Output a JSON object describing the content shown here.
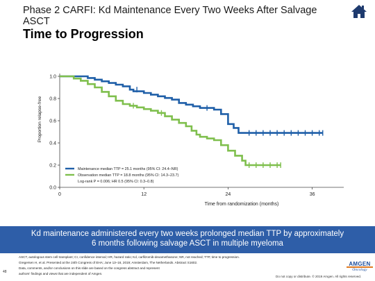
{
  "header": {
    "title_line1": "Phase 2 CARFI: Kd Maintenance Every Two Weeks After Salvage ASCT",
    "title_line2": "Time to Progression"
  },
  "icons": {
    "home": "home-icon"
  },
  "chart_data": {
    "type": "line",
    "subtype": "kaplan-meier",
    "xlabel": "Time from randomization (months)",
    "ylabel": "Proportion relapse-free",
    "xlim": [
      0,
      40
    ],
    "ylim": [
      0,
      1
    ],
    "x_ticks": [
      "0",
      "12",
      "24",
      "36"
    ],
    "y_ticks": [
      "0.0",
      "0.2",
      "0.4",
      "0.6",
      "0.8",
      "1.0"
    ],
    "legend_position": "bottom-center",
    "series": [
      {
        "name": "Maintenance median TTP = 25.1 months (95% CI: 24.4–NR)",
        "color": "#1f5fa8",
        "points": [
          [
            0,
            1.0
          ],
          [
            4,
            1.0
          ],
          [
            4,
            0.985
          ],
          [
            5,
            0.985
          ],
          [
            5,
            0.97
          ],
          [
            6,
            0.97
          ],
          [
            6,
            0.955
          ],
          [
            7,
            0.955
          ],
          [
            7,
            0.94
          ],
          [
            8,
            0.94
          ],
          [
            8,
            0.925
          ],
          [
            9,
            0.925
          ],
          [
            9,
            0.91
          ],
          [
            10,
            0.91
          ],
          [
            10,
            0.88
          ],
          [
            10.5,
            0.88
          ],
          [
            10.5,
            0.865
          ],
          [
            12,
            0.865
          ],
          [
            12,
            0.85
          ],
          [
            13,
            0.85
          ],
          [
            13,
            0.835
          ],
          [
            14,
            0.835
          ],
          [
            14,
            0.82
          ],
          [
            15,
            0.82
          ],
          [
            15,
            0.805
          ],
          [
            16,
            0.805
          ],
          [
            16,
            0.79
          ],
          [
            17,
            0.79
          ],
          [
            17,
            0.76
          ],
          [
            18,
            0.76
          ],
          [
            18,
            0.745
          ],
          [
            19,
            0.745
          ],
          [
            19,
            0.73
          ],
          [
            20,
            0.73
          ],
          [
            20,
            0.715
          ],
          [
            22,
            0.715
          ],
          [
            22,
            0.7
          ],
          [
            23,
            0.7
          ],
          [
            23,
            0.66
          ],
          [
            24,
            0.66
          ],
          [
            24,
            0.57
          ],
          [
            24.8,
            0.57
          ],
          [
            24.8,
            0.535
          ],
          [
            25.5,
            0.535
          ],
          [
            25.5,
            0.49
          ],
          [
            37.5,
            0.49
          ]
        ],
        "censor_marks": [
          [
            11,
            0.88
          ],
          [
            21,
            0.715
          ],
          [
            27,
            0.49
          ],
          [
            28,
            0.49
          ],
          [
            29,
            0.49
          ],
          [
            30,
            0.49
          ],
          [
            31,
            0.49
          ],
          [
            32,
            0.49
          ],
          [
            33,
            0.49
          ],
          [
            34,
            0.49
          ],
          [
            35,
            0.49
          ],
          [
            36,
            0.49
          ],
          [
            37,
            0.49
          ],
          [
            37.5,
            0.49
          ]
        ]
      },
      {
        "name": "Observation median TTP = 18.8 months (95% CI: 14.3–23.7)",
        "color": "#7fbf4d",
        "points": [
          [
            0,
            1.0
          ],
          [
            2,
            1.0
          ],
          [
            2,
            0.98
          ],
          [
            3,
            0.98
          ],
          [
            3,
            0.96
          ],
          [
            4,
            0.96
          ],
          [
            4,
            0.93
          ],
          [
            5,
            0.93
          ],
          [
            5,
            0.9
          ],
          [
            6,
            0.9
          ],
          [
            6,
            0.86
          ],
          [
            7,
            0.86
          ],
          [
            7,
            0.82
          ],
          [
            8,
            0.82
          ],
          [
            8,
            0.78
          ],
          [
            9,
            0.78
          ],
          [
            9,
            0.75
          ],
          [
            10,
            0.75
          ],
          [
            10,
            0.735
          ],
          [
            11,
            0.735
          ],
          [
            11,
            0.72
          ],
          [
            12,
            0.72
          ],
          [
            12,
            0.705
          ],
          [
            13,
            0.705
          ],
          [
            13,
            0.69
          ],
          [
            14,
            0.69
          ],
          [
            14,
            0.67
          ],
          [
            15,
            0.67
          ],
          [
            15,
            0.64
          ],
          [
            16,
            0.64
          ],
          [
            16,
            0.61
          ],
          [
            17,
            0.61
          ],
          [
            17,
            0.58
          ],
          [
            18,
            0.58
          ],
          [
            18,
            0.55
          ],
          [
            18.8,
            0.55
          ],
          [
            18.8,
            0.51
          ],
          [
            19.5,
            0.51
          ],
          [
            19.5,
            0.475
          ],
          [
            20,
            0.475
          ],
          [
            20,
            0.455
          ],
          [
            21,
            0.455
          ],
          [
            21,
            0.44
          ],
          [
            22,
            0.44
          ],
          [
            22,
            0.425
          ],
          [
            23,
            0.425
          ],
          [
            23,
            0.38
          ],
          [
            24,
            0.38
          ],
          [
            24,
            0.33
          ],
          [
            25,
            0.33
          ],
          [
            25,
            0.285
          ],
          [
            26,
            0.285
          ],
          [
            26,
            0.24
          ],
          [
            26.5,
            0.24
          ],
          [
            26.5,
            0.2
          ],
          [
            31.5,
            0.2
          ]
        ],
        "censor_marks": [
          [
            10.5,
            0.735
          ],
          [
            14.5,
            0.67
          ],
          [
            27,
            0.2
          ],
          [
            28,
            0.2
          ],
          [
            29,
            0.2
          ],
          [
            30,
            0.2
          ],
          [
            31,
            0.2
          ],
          [
            31.5,
            0.2
          ]
        ]
      }
    ],
    "annotation": "Log-rank P = 0.006; HR 0.5 (95% CI: 0.3–0.8)"
  },
  "banner": {
    "line1": "Kd maintenance administered every two weeks prolonged median TTP by approximately",
    "line2": "6 months following salvage ASCT in multiple myeloma"
  },
  "footnote": {
    "line1": "ASCT, autologous stem cell transplant; CI, confidence interval; HR, hazard ratio; Kd, carfilzomib-dexamethasone; NR, not reached; TTP, time to progression.",
    "line2": "Gregersen H, et al. Presented at the 24th Congress of EHA; June 13–16, 2019; Amsterdam, The Netherlands. Abstract S1602.",
    "line3": "Data, comments, and/or conclusions on this slide are based on the congress abstract and represent",
    "line4": "authors' findings and views that are independent of Amgen."
  },
  "page_number": "48",
  "copyright": "Do not copy or distribute. © 2019 Amgen. All rights reserved.",
  "logo": {
    "word": "AMGEN",
    "sub": "Oncology"
  }
}
